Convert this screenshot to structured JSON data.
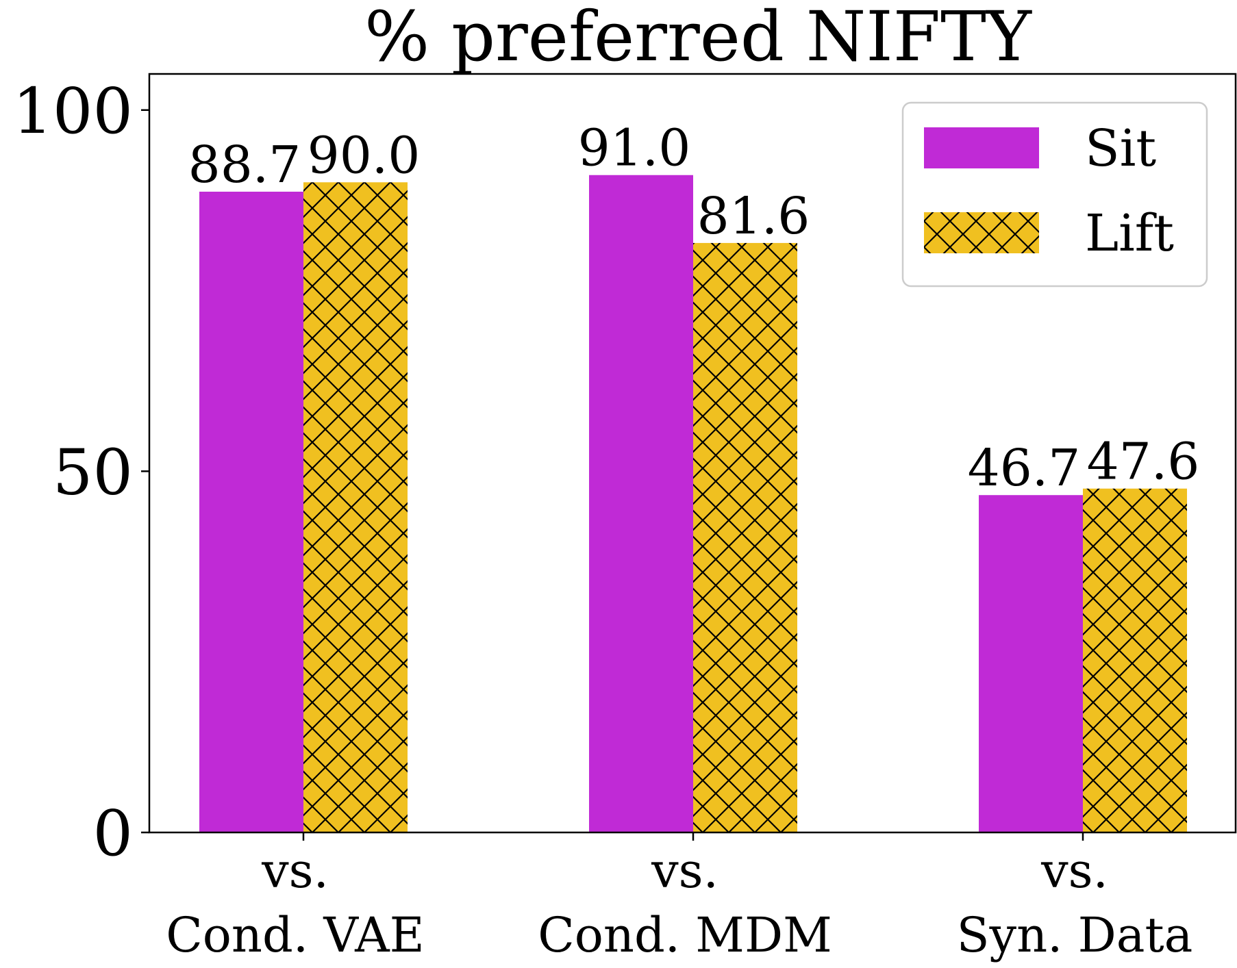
{
  "chart_data": {
    "type": "bar",
    "title": "% preferred NIFTY",
    "xlabel": "",
    "ylabel": "",
    "ylim": [
      0,
      105
    ],
    "yticks": [
      0,
      50,
      100
    ],
    "ytick_labels": [
      "0",
      "50",
      "100"
    ],
    "categories": [
      [
        "vs.",
        "Cond. VAE"
      ],
      [
        "vs.",
        "Cond. MDM"
      ],
      [
        "vs.",
        "Syn. Data"
      ]
    ],
    "series": [
      {
        "name": "Sit",
        "values": [
          88.7,
          91.0,
          46.7
        ],
        "labels": [
          "88.7",
          "91.0",
          "46.7"
        ],
        "color": "#c02ad6",
        "hatch": "none"
      },
      {
        "name": "Lift",
        "values": [
          90.0,
          81.6,
          47.6
        ],
        "labels": [
          "90.0",
          "81.6",
          "47.6"
        ],
        "color": "#f0c020",
        "hatch": "crosshatch"
      }
    ],
    "grid": false,
    "legend": {
      "placement": "top-right",
      "entries": [
        "Sit",
        "Lift"
      ]
    }
  }
}
